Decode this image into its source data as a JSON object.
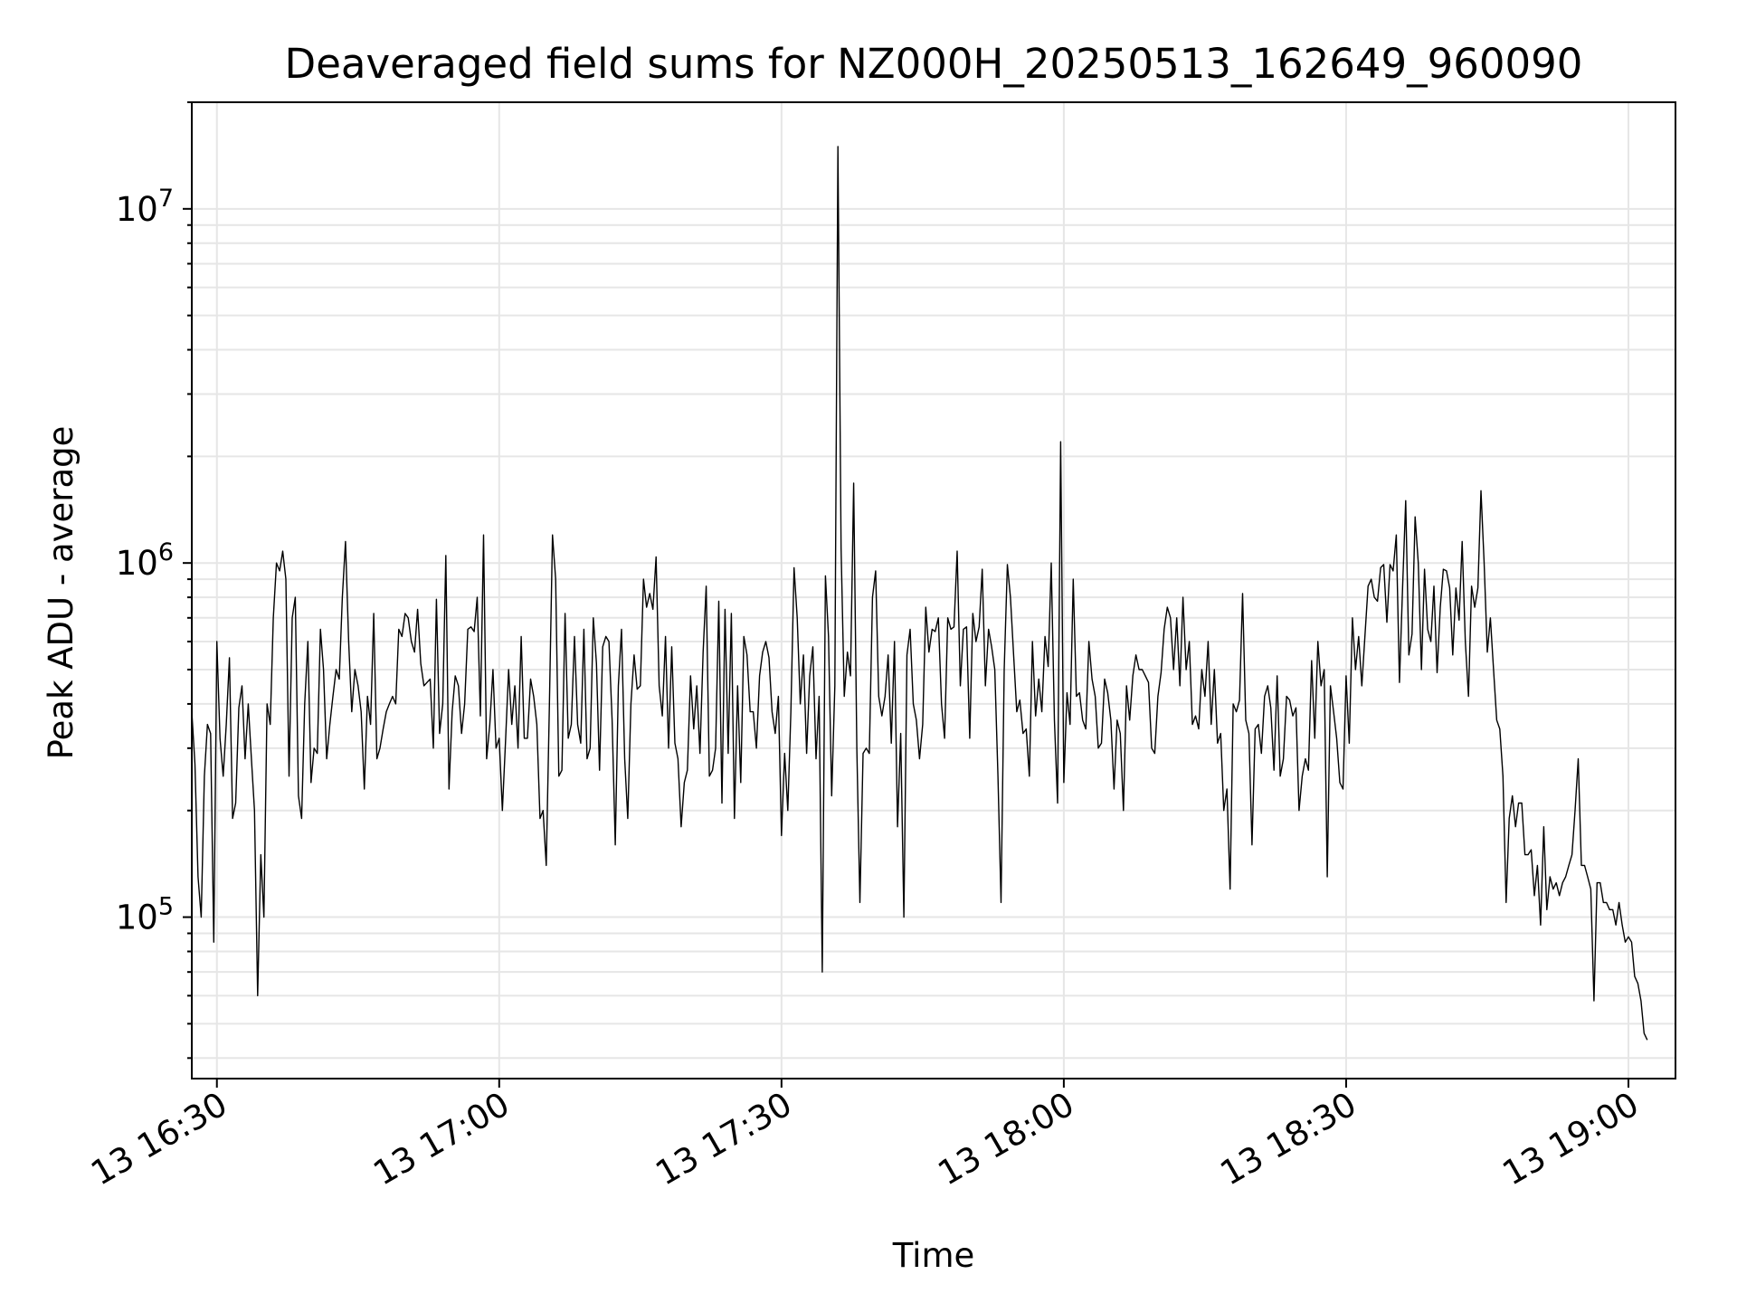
{
  "chart_data": {
    "type": "line",
    "title": "Deaveraged field sums for NZ000H_20250513_162649_960090",
    "xlabel": "Time",
    "ylabel": "Peak ADU - average",
    "yscale": "log",
    "ylim": [
      35000,
      20000000
    ],
    "xlim": [
      "2025-05-13 16:27:20",
      "2025-05-13 19:05:00"
    ],
    "grid": true,
    "line_color": "#000000",
    "grid_color": "#e6e6e6",
    "x_ticks": [
      {
        "t": "2025-05-13 16:30",
        "label": "13 16:30"
      },
      {
        "t": "2025-05-13 17:00",
        "label": "13 17:00"
      },
      {
        "t": "2025-05-13 17:30",
        "label": "13 17:30"
      },
      {
        "t": "2025-05-13 18:00",
        "label": "13 18:00"
      },
      {
        "t": "2025-05-13 18:30",
        "label": "13 18:30"
      },
      {
        "t": "2025-05-13 19:00",
        "label": "13 19:00"
      }
    ],
    "y_ticks": [
      {
        "value": 100000,
        "base": "10",
        "exp": "5"
      },
      {
        "value": 1000000,
        "base": "10",
        "exp": "6"
      },
      {
        "value": 10000000,
        "base": "10",
        "exp": "7"
      }
    ],
    "series": [
      {
        "x_start": "2025-05-13 16:27:20",
        "x_step_seconds": 20,
        "values": [
          380000,
          270000,
          130000,
          100000,
          250000,
          350000,
          330000,
          85000,
          600000,
          320000,
          250000,
          350000,
          540000,
          190000,
          210000,
          390000,
          450000,
          280000,
          400000,
          280000,
          200000,
          60000,
          150000,
          100000,
          400000,
          350000,
          700000,
          1000000,
          950000,
          1080000,
          900000,
          250000,
          700000,
          800000,
          220000,
          190000,
          400000,
          600000,
          240000,
          300000,
          290000,
          650000,
          500000,
          280000,
          350000,
          420000,
          500000,
          470000,
          800000,
          1150000,
          600000,
          380000,
          500000,
          450000,
          380000,
          230000,
          420000,
          350000,
          720000,
          280000,
          300000,
          340000,
          380000,
          400000,
          420000,
          400000,
          650000,
          620000,
          720000,
          700000,
          600000,
          560000,
          740000,
          520000,
          450000,
          460000,
          470000,
          300000,
          790000,
          330000,
          400000,
          1050000,
          230000,
          380000,
          480000,
          450000,
          330000,
          400000,
          650000,
          660000,
          640000,
          800000,
          370000,
          1200000,
          280000,
          350000,
          500000,
          300000,
          320000,
          200000,
          310000,
          500000,
          350000,
          450000,
          300000,
          620000,
          320000,
          320000,
          470000,
          420000,
          350000,
          190000,
          200000,
          140000,
          400000,
          1200000,
          900000,
          250000,
          260000,
          720000,
          320000,
          350000,
          620000,
          350000,
          310000,
          650000,
          280000,
          300000,
          700000,
          520000,
          260000,
          580000,
          620000,
          600000,
          360000,
          160000,
          450000,
          650000,
          280000,
          190000,
          400000,
          550000,
          440000,
          450000,
          900000,
          750000,
          820000,
          740000,
          1040000,
          450000,
          370000,
          620000,
          300000,
          580000,
          310000,
          280000,
          180000,
          240000,
          260000,
          480000,
          340000,
          450000,
          290000,
          560000,
          860000,
          250000,
          260000,
          300000,
          780000,
          210000,
          740000,
          290000,
          720000,
          190000,
          450000,
          240000,
          620000,
          550000,
          380000,
          380000,
          300000,
          480000,
          560000,
          600000,
          540000,
          380000,
          330000,
          420000,
          170000,
          290000,
          200000,
          380000,
          970000,
          700000,
          400000,
          550000,
          290000,
          480000,
          580000,
          280000,
          420000,
          70000,
          920000,
          620000,
          220000,
          450000,
          15000000,
          1100000,
          420000,
          560000,
          480000,
          1680000,
          300000,
          110000,
          290000,
          300000,
          290000,
          800000,
          950000,
          420000,
          370000,
          420000,
          550000,
          310000,
          600000,
          180000,
          330000,
          100000,
          550000,
          650000,
          400000,
          360000,
          280000,
          350000,
          750000,
          560000,
          650000,
          640000,
          700000,
          400000,
          320000,
          700000,
          650000,
          660000,
          1080000,
          450000,
          650000,
          660000,
          320000,
          720000,
          600000,
          660000,
          960000,
          450000,
          650000,
          580000,
          500000,
          250000,
          110000,
          500000,
          990000,
          800000,
          550000,
          380000,
          410000,
          330000,
          340000,
          250000,
          600000,
          370000,
          470000,
          380000,
          620000,
          510000,
          1000000,
          360000,
          210000,
          2200000,
          240000,
          430000,
          350000,
          900000,
          420000,
          430000,
          360000,
          340000,
          600000,
          470000,
          420000,
          300000,
          310000,
          470000,
          430000,
          360000,
          230000,
          360000,
          330000,
          200000,
          450000,
          360000,
          480000,
          550000,
          500000,
          500000,
          480000,
          460000,
          300000,
          290000,
          420000,
          490000,
          650000,
          750000,
          700000,
          500000,
          700000,
          450000,
          800000,
          500000,
          600000,
          350000,
          370000,
          340000,
          500000,
          420000,
          600000,
          350000,
          500000,
          310000,
          330000,
          200000,
          230000,
          120000,
          400000,
          380000,
          410000,
          820000,
          360000,
          330000,
          160000,
          340000,
          350000,
          290000,
          420000,
          450000,
          390000,
          260000,
          480000,
          250000,
          280000,
          420000,
          410000,
          370000,
          390000,
          200000,
          250000,
          280000,
          260000,
          530000,
          320000,
          600000,
          450000,
          500000,
          130000,
          450000,
          380000,
          320000,
          240000,
          230000,
          480000,
          310000,
          700000,
          500000,
          620000,
          450000,
          620000,
          860000,
          900000,
          800000,
          780000,
          970000,
          990000,
          680000,
          990000,
          950000,
          1200000,
          460000,
          860000,
          1500000,
          550000,
          630000,
          1350000,
          1000000,
          500000,
          960000,
          650000,
          600000,
          860000,
          490000,
          750000,
          960000,
          950000,
          850000,
          550000,
          850000,
          690000,
          1150000,
          600000,
          420000,
          860000,
          750000,
          850000,
          1600000,
          1000000,
          560000,
          700000,
          500000,
          360000,
          340000,
          250000,
          110000,
          190000,
          220000,
          180000,
          210000,
          210000,
          150000,
          150000,
          155000,
          115000,
          140000,
          95000,
          180000,
          105000,
          130000,
          120000,
          125000,
          115000,
          125000,
          130000,
          140000,
          150000,
          200000,
          280000,
          140000,
          140000,
          130000,
          120000,
          58000,
          125000,
          125000,
          110000,
          110000,
          105000,
          105000,
          95000,
          110000,
          95000,
          85000,
          88000,
          85000,
          68000,
          65000,
          58000,
          47000,
          45000
        ]
      }
    ]
  }
}
